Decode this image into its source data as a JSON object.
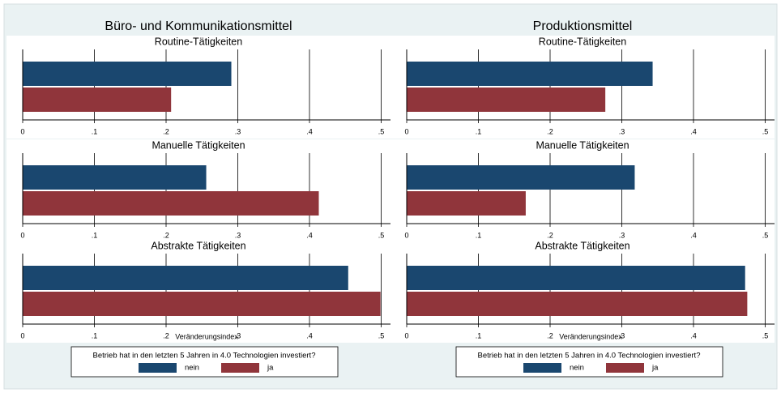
{
  "chart_data": [
    {
      "type": "bar",
      "title": "Büro- und Kommunikationsmittel",
      "categories": [
        "Routine-Tätigkeiten",
        "Manuelle Tätigkeiten",
        "Abstrakte Tätigkeiten"
      ],
      "series": [
        {
          "name": "nein",
          "color": "#1a476f",
          "values": [
            0.291,
            0.256,
            0.454
          ]
        },
        {
          "name": "ja",
          "color": "#90353b",
          "values": [
            0.207,
            0.413,
            0.499
          ]
        }
      ],
      "xlabel": "Veränderungsindex",
      "legend_title": "Betrieb hat in den letzten 5 Jahren in 4.0 Technologien investiert?",
      "xlim": [
        0,
        0.513
      ],
      "xticks": [
        0,
        {
          "value": 0.1,
          "label": ".1"
        },
        {
          "value": 0.2,
          "label": ".2"
        },
        {
          "value": 0.3,
          "label": ".3"
        },
        {
          "value": 0.4,
          "label": ".4"
        },
        {
          "value": 0.5,
          "label": ".5"
        }
      ],
      "grid": true
    },
    {
      "type": "bar",
      "title": "Produktionsmittel",
      "categories": [
        "Routine-Tätigkeiten",
        "Manuelle Tätigkeiten",
        "Abstrakte Tätigkeiten"
      ],
      "series": [
        {
          "name": "nein",
          "color": "#1a476f",
          "values": [
            0.343,
            0.318,
            0.472
          ]
        },
        {
          "name": "ja",
          "color": "#90353b",
          "values": [
            0.277,
            0.166,
            0.475
          ]
        }
      ],
      "xlabel": "Veränderungsindex",
      "legend_title": "Betrieb hat in den letzten 5 Jahren in 4.0 Technologien investiert?",
      "xlim": [
        0,
        0.513
      ],
      "xticks": [
        0,
        {
          "value": 0.1,
          "label": ".1"
        },
        {
          "value": 0.2,
          "label": ".2"
        },
        {
          "value": 0.3,
          "label": ".3"
        },
        {
          "value": 0.4,
          "label": ".4"
        },
        {
          "value": 0.5,
          "label": ".5"
        }
      ],
      "grid": true
    }
  ]
}
